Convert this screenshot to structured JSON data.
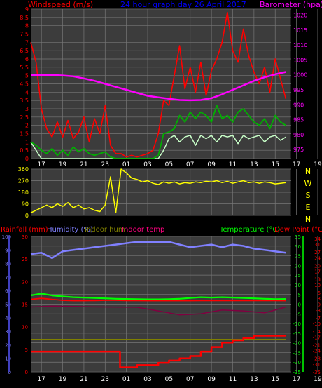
{
  "header": {
    "left": "Windspeed (m/s)",
    "center": "24 hour graph day   26 April 2017",
    "right": "Barometer (hpa)"
  },
  "compass": [
    "N",
    "W",
    "S",
    "E",
    "N"
  ],
  "bottom_header": {
    "rainfall": "Rainfall (mm)",
    "humidity": "Humidity (%)",
    "indoor_hum": "Indoor hum",
    "indoor_temp": "Indoor temp",
    "temperature": "Temperature (°C)",
    "dew_point": "Dew Point (°C)"
  },
  "colors": {
    "bg": "#000000",
    "plot_bg": "#3c3c3c",
    "grid": "#777777",
    "wind_avg": "#00b000",
    "wind_gust": "#ff0000",
    "barometer": "#ff00ff",
    "wind_dir": "#ffff00",
    "humidity": "#8080ff",
    "indoor_hum": "#808000",
    "indoor_temp": "#800040",
    "temperature": "#00ff00",
    "dew_point": "#ff0000",
    "rain": "#ff0000",
    "title": "#0000ff"
  },
  "chart_data": [
    {
      "type": "line",
      "title": "24 hour graph day   26 April 2017",
      "xlabel": "",
      "x_ticks": [
        "17",
        "19",
        "21",
        "23",
        "01",
        "03",
        "05",
        "07",
        "09",
        "11",
        "13",
        "15",
        "17",
        "19",
        "21",
        "23"
      ],
      "ylabel": "Windspeed (m/s)",
      "ylim": [
        0,
        9
      ],
      "y_ticks": [
        "0",
        "0,5",
        "1",
        "1,5",
        "2",
        "2,5",
        "3",
        "3,5",
        "4",
        "4,5",
        "5",
        "5,5",
        "6",
        "6,5",
        "7",
        "7,5",
        "8",
        "8,5",
        "9"
      ],
      "y2label": "Barometer (hpa)",
      "y2lim": [
        972,
        1022
      ],
      "y2_ticks": [
        "975",
        "980",
        "985",
        "990",
        "995",
        "1000",
        "1005",
        "1010",
        "1015",
        "1020"
      ],
      "grid": true,
      "series": [
        {
          "key": "gust",
          "axis": "left",
          "x": [
            16.0,
            16.5,
            17.0,
            17.5,
            18.0,
            18.5,
            19.0,
            19.5,
            20.0,
            20.5,
            21.0,
            21.5,
            22.0,
            22.5,
            23.0,
            23.5,
            24.0,
            24.5,
            25.0,
            25.5,
            26.0,
            26.5,
            27.0,
            27.5,
            28.0,
            28.5,
            29.0,
            29.5,
            30.0,
            30.5,
            31.0,
            31.5,
            32.0,
            32.5,
            33.0,
            33.5,
            34.0,
            34.5,
            35.0,
            35.5,
            36.0,
            36.5,
            37.0,
            37.5,
            38.0,
            38.5,
            39.0,
            39.5,
            40.0
          ],
          "values": [
            7.0,
            5.8,
            3.0,
            1.8,
            1.3,
            2.2,
            1.3,
            2.3,
            1.2,
            1.6,
            2.5,
            1.0,
            2.4,
            1.5,
            3.2,
            0.8,
            0.3,
            0.3,
            0.1,
            0.2,
            0.1,
            0.2,
            0.3,
            0.5,
            1.5,
            3.5,
            3.2,
            5.0,
            6.8,
            4.2,
            5.5,
            4.0,
            5.8,
            3.8,
            5.3,
            6.0,
            7.0,
            8.8,
            6.5,
            5.8,
            7.8,
            6.2,
            5.2,
            4.5,
            5.5,
            4.0,
            6.0,
            4.8,
            3.6
          ]
        },
        {
          "key": "avg",
          "axis": "left",
          "x": [
            16.0,
            16.5,
            17.0,
            17.5,
            18.0,
            18.5,
            19.0,
            19.5,
            20.0,
            20.5,
            21.0,
            21.5,
            22.0,
            22.5,
            23.0,
            23.5,
            24.0,
            24.5,
            25.0,
            25.5,
            26.0,
            26.5,
            27.0,
            27.5,
            28.0,
            28.5,
            29.0,
            29.5,
            30.0,
            30.5,
            31.0,
            31.5,
            32.0,
            32.5,
            33.0,
            33.5,
            34.0,
            34.5,
            35.0,
            35.5,
            36.0,
            36.5,
            37.0,
            37.5,
            38.0,
            38.5,
            39.0,
            39.5,
            40.0
          ],
          "values": [
            1.0,
            0.8,
            0.5,
            0.3,
            0.6,
            0.2,
            0.5,
            0.2,
            0.7,
            0.4,
            0.6,
            0.3,
            0.2,
            0.3,
            0.4,
            0.1,
            0.0,
            0.0,
            0.0,
            0.0,
            0.0,
            0.0,
            0.0,
            0.0,
            0.2,
            1.5,
            1.6,
            1.8,
            2.6,
            2.2,
            2.8,
            2.4,
            2.8,
            2.6,
            2.2,
            3.2,
            2.4,
            2.6,
            2.2,
            2.8,
            3.0,
            2.6,
            2.2,
            2.0,
            2.4,
            1.8,
            2.6,
            2.2,
            2.0
          ]
        },
        {
          "key": "dir_band",
          "axis": "left",
          "x": [
            16.0,
            16.5,
            17.0,
            17.5,
            18.0,
            18.5,
            19.0,
            19.5,
            20.0,
            20.5,
            21.0,
            21.5,
            22.0,
            22.5,
            23.0,
            23.5,
            24.0,
            24.5,
            25.0,
            25.5,
            26.0,
            26.5,
            27.0,
            27.5,
            28.0,
            28.5,
            29.0,
            29.5,
            30.0,
            30.5,
            31.0,
            31.5,
            32.0,
            32.5,
            33.0,
            33.5,
            34.0,
            34.5,
            35.0,
            35.5,
            36.0,
            36.5,
            37.0,
            37.5,
            38.0,
            38.5,
            39.0,
            39.5,
            40.0
          ],
          "values": [
            1.0,
            0.5,
            0.0,
            0.0,
            0.0,
            0.0,
            0.0,
            0.0,
            0.0,
            0.0,
            0.0,
            0.0,
            0.0,
            0.0,
            0.0,
            0.0,
            0.0,
            0.0,
            0.0,
            0.0,
            0.0,
            0.0,
            0.0,
            0.0,
            0.0,
            0.5,
            1.2,
            1.4,
            1.0,
            1.3,
            1.4,
            0.8,
            1.4,
            1.2,
            1.4,
            1.0,
            1.4,
            1.3,
            1.4,
            0.9,
            1.4,
            1.2,
            1.3,
            1.4,
            1.0,
            1.3,
            1.4,
            1.1,
            1.3
          ]
        },
        {
          "key": "baro",
          "axis": "right",
          "x": [
            16.0,
            17.0,
            18.0,
            19.0,
            20.0,
            21.0,
            22.0,
            23.0,
            24.0,
            25.0,
            26.0,
            27.0,
            28.0,
            29.0,
            30.0,
            31.0,
            32.0,
            33.0,
            34.0,
            35.0,
            36.0,
            37.0,
            38.0,
            39.0,
            40.0
          ],
          "values": [
            1000.0,
            1000.0,
            1000.0,
            999.8,
            999.5,
            998.8,
            998.0,
            997.0,
            996.0,
            995.0,
            994.0,
            993.0,
            992.5,
            992.0,
            991.6,
            991.5,
            991.6,
            992.2,
            993.5,
            995.0,
            996.5,
            998.0,
            999.2,
            1000.2,
            1001.0
          ]
        }
      ]
    },
    {
      "type": "line",
      "x_ticks": [],
      "y_ticks": [
        "0",
        "90",
        "180",
        "270",
        "360"
      ],
      "ylim": [
        0,
        360
      ],
      "grid": true,
      "series": [
        {
          "key": "dir",
          "x": [
            16.0,
            16.5,
            17.0,
            17.5,
            18.0,
            18.5,
            19.0,
            19.5,
            20.0,
            20.5,
            21.0,
            21.5,
            22.0,
            22.5,
            23.0,
            23.5,
            24.0,
            24.5,
            25.0,
            25.5,
            26.0,
            26.5,
            27.0,
            27.5,
            28.0,
            28.5,
            29.0,
            29.5,
            30.0,
            30.5,
            31.0,
            31.5,
            32.0,
            32.5,
            33.0,
            33.5,
            34.0,
            34.5,
            35.0,
            35.5,
            36.0,
            36.5,
            37.0,
            37.5,
            38.0,
            38.5,
            39.0,
            39.5,
            40.0
          ],
          "values": [
            20,
            40,
            60,
            80,
            60,
            90,
            70,
            100,
            60,
            80,
            50,
            60,
            40,
            30,
            80,
            300,
            20,
            360,
            330,
            290,
            280,
            260,
            270,
            250,
            240,
            260,
            250,
            260,
            245,
            255,
            250,
            260,
            255,
            265,
            260,
            270,
            255,
            265,
            250,
            260,
            270,
            255,
            260,
            250,
            260,
            255,
            245,
            250,
            255
          ]
        }
      ]
    },
    {
      "type": "line",
      "x_ticks": [
        "17",
        "19",
        "21",
        "23",
        "01",
        "03",
        "05",
        "07",
        "09",
        "11",
        "13",
        "15",
        "17",
        "19",
        "21",
        "23"
      ],
      "grid": true,
      "axes": {
        "humidity": {
          "label": "Humidity (%)",
          "ylim": [
            0,
            100
          ],
          "ticks": [
            "0",
            "10",
            "20",
            "30",
            "40",
            "50",
            "60",
            "70",
            "80",
            "90",
            "100"
          ]
        },
        "rainfall": {
          "label": "Rainfall (mm)",
          "ylim": [
            0,
            30
          ],
          "ticks": [
            "0",
            "5",
            "10",
            "15",
            "20",
            "25",
            "30"
          ]
        },
        "temperature": {
          "label": "Temperature (°C)",
          "ylim": [
            -35,
            35
          ],
          "ticks": [
            "-35",
            "-30",
            "-25",
            "-20",
            "-15",
            "-10",
            "-5",
            "0",
            "5",
            "10",
            "15",
            "20",
            "25",
            "30",
            "35"
          ]
        },
        "dew_point": {
          "label": "Dew Point (°C)",
          "ylim": [
            -35,
            35
          ],
          "ticks": [
            "-35",
            "-31",
            "-28",
            "-24",
            "-21",
            "-17",
            "-14",
            "-10",
            "-7",
            "-3",
            "0",
            "3",
            "6",
            "10",
            "13",
            "17",
            "20",
            "24",
            "27",
            "31",
            "34"
          ]
        }
      },
      "series": [
        {
          "key": "humidity",
          "name": "Humidity (%)",
          "axis": "humidity",
          "x": [
            16.0,
            17.0,
            18.0,
            19.0,
            20.0,
            21.0,
            22.0,
            23.0,
            24.0,
            25.0,
            26.0,
            27.0,
            28.0,
            29.0,
            30.0,
            31.0,
            32.0,
            33.0,
            34.0,
            35.0,
            36.0,
            37.0,
            38.0,
            39.0,
            40.0
          ],
          "values": [
            87,
            88,
            84,
            89,
            90,
            91,
            92,
            93,
            94,
            95,
            96,
            96,
            96,
            96,
            94,
            92,
            93,
            94,
            92,
            94,
            93,
            91,
            90,
            89,
            88
          ]
        },
        {
          "key": "indoor_hum",
          "name": "Indoor hum",
          "axis": "humidity",
          "x": [
            16.0,
            18.0,
            20.0,
            22.0,
            24.0,
            26.0,
            28.0,
            30.0,
            32.0,
            34.0,
            36.0,
            38.0,
            40.0
          ],
          "values": [
            24,
            24,
            24,
            24,
            24,
            24,
            24,
            24,
            24,
            24,
            24,
            24,
            24
          ]
        },
        {
          "key": "temperature",
          "name": "Temperature (°C)",
          "axis": "temperature",
          "x": [
            16.0,
            17.0,
            18.0,
            19.0,
            20.0,
            21.0,
            22.0,
            23.0,
            24.0,
            25.0,
            26.0,
            27.0,
            28.0,
            29.0,
            30.0,
            31.0,
            32.0,
            33.0,
            34.0,
            35.0,
            36.0,
            37.0,
            38.0,
            39.0,
            40.0
          ],
          "values": [
            4.5,
            5.5,
            4.5,
            4.0,
            3.6,
            3.4,
            3.2,
            3.0,
            2.8,
            2.7,
            2.6,
            2.5,
            2.5,
            2.6,
            2.8,
            3.2,
            3.6,
            3.4,
            3.6,
            3.4,
            3.2,
            3.0,
            2.8,
            2.6,
            2.7
          ]
        },
        {
          "key": "indoor_temp",
          "name": "Indoor temp",
          "axis": "temperature",
          "x": [
            16.0,
            18.0,
            20.0,
            22.0,
            24.0,
            26.0,
            28.0,
            30.0,
            32.0,
            34.0,
            36.0,
            38.0,
            40.0
          ],
          "values": [
            -1.5,
            -1.0,
            -1.2,
            -1.4,
            -1.5,
            -1.6,
            -3.5,
            -5.5,
            -5.0,
            -3.0,
            -3.5,
            -4.5,
            -1.5
          ]
        },
        {
          "key": "dew_point",
          "name": "Dew Point (°C)",
          "axis": "temperature",
          "x": [
            16.0,
            17.0,
            18.0,
            19.0,
            20.0,
            21.0,
            22.0,
            23.0,
            24.0,
            25.0,
            26.0,
            27.0,
            28.0,
            29.0,
            30.0,
            31.0,
            32.0,
            33.0,
            34.0,
            35.0,
            36.0,
            37.0,
            38.0,
            39.0,
            40.0
          ],
          "values": [
            2.5,
            3.0,
            2.5,
            2.0,
            1.8,
            1.8,
            1.9,
            2.0,
            2.0,
            1.9,
            1.9,
            1.8,
            1.8,
            1.8,
            1.8,
            1.8,
            1.9,
            1.9,
            1.9,
            1.9,
            1.9,
            1.9,
            1.9,
            1.9,
            1.8
          ]
        },
        {
          "key": "rain",
          "name": "Rainfall (mm)",
          "axis": "rainfall",
          "step": true,
          "x": [
            16.0,
            22.0,
            24.0,
            24.4,
            26.0,
            28.0,
            29.0,
            30.0,
            31.0,
            32.0,
            33.0,
            34.0,
            35.0,
            36.0,
            37.0,
            40.0
          ],
          "values": [
            4.5,
            4.5,
            4.5,
            1.0,
            1.5,
            2.0,
            2.5,
            3.0,
            3.5,
            4.5,
            5.5,
            6.5,
            7.0,
            7.5,
            8.0,
            8.0
          ]
        }
      ]
    }
  ]
}
